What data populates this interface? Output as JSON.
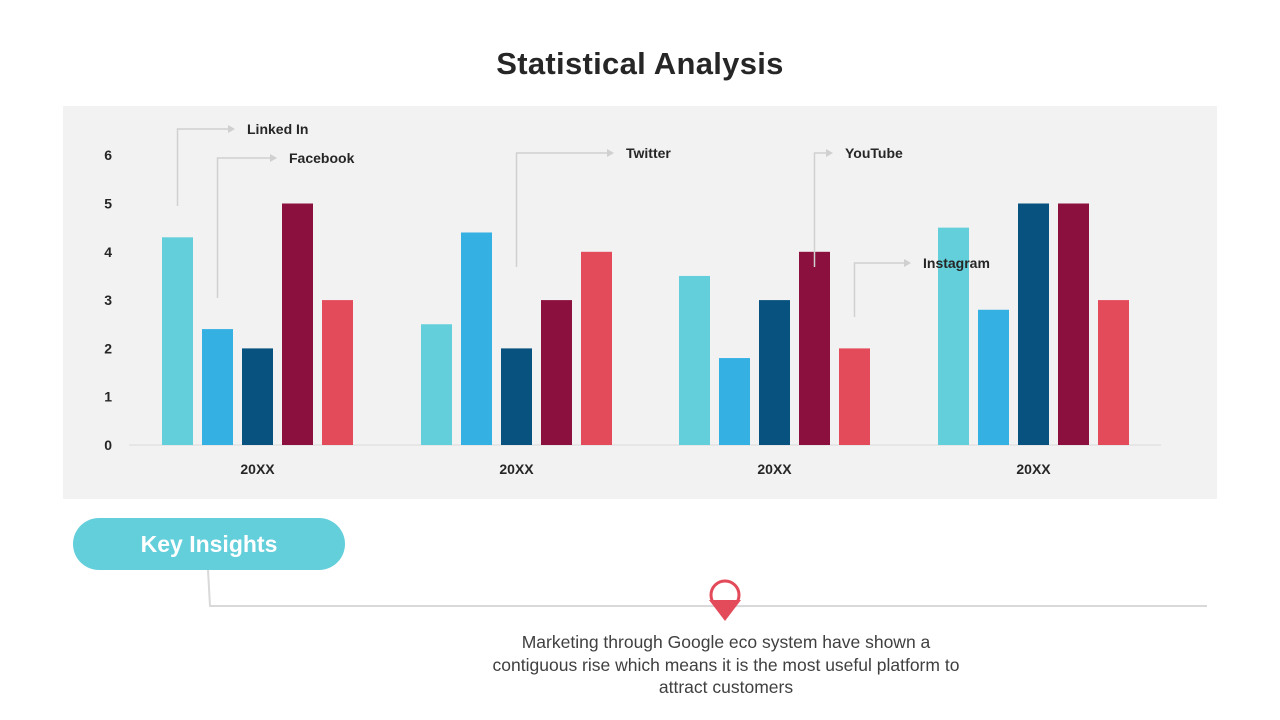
{
  "title": "Statistical Analysis",
  "key_insights_label": "Key Insights",
  "insight_text": "Marketing through Google eco system have shown a contiguous rise which means it is the most useful platform to attract customers",
  "icons": {
    "insight_marker": "map-pin-icon"
  },
  "colors": {
    "panel_bg": "#f2f2f2",
    "accent": "#63cfdb"
  },
  "chart_data": {
    "type": "bar",
    "categories": [
      "20XX",
      "20XX",
      "20XX",
      "20XX"
    ],
    "ylim": [
      0,
      6
    ],
    "yticks": [
      "0",
      "1",
      "2",
      "3",
      "4",
      "5",
      "6"
    ],
    "grid": false,
    "series": [
      {
        "name": "Linked In",
        "color": "#63cfdb",
        "values": [
          4.3,
          2.5,
          3.5,
          4.5
        ]
      },
      {
        "name": "Facebook",
        "color": "#35b0e3",
        "values": [
          2.4,
          4.4,
          1.8,
          2.8
        ]
      },
      {
        "name": "Twitter",
        "color": "#07527f",
        "values": [
          2.0,
          2.0,
          3.0,
          5.0
        ]
      },
      {
        "name": "YouTube",
        "color": "#8b103e",
        "values": [
          5.0,
          3.0,
          4.0,
          5.0
        ]
      },
      {
        "name": "Instagram",
        "color": "#e34a5a",
        "values": [
          3.0,
          4.0,
          2.0,
          3.0
        ]
      }
    ]
  }
}
